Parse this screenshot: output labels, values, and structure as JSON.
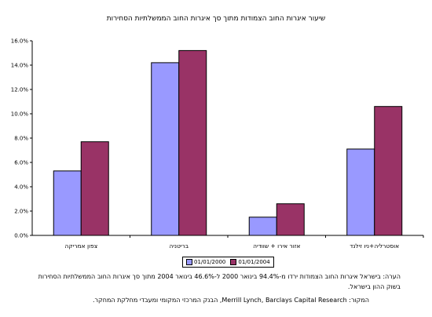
{
  "chart_data": {
    "type": "bar",
    "title": "שיעור איגרות החוב הצמודות מתוך סך איגרות החוב הממשלתיות הסחירות",
    "categories": [
      "צפון אמריקה",
      "בריטניה",
      "אזור אירו + שוודיה",
      "אוסטרליה+ניו זילנד"
    ],
    "series": [
      {
        "name": "01/01/2000",
        "color": "#9999ff",
        "values": [
          5.3,
          14.2,
          1.5,
          7.1
        ]
      },
      {
        "name": "01/01/2004",
        "color": "#993366",
        "values": [
          7.7,
          15.2,
          2.6,
          10.6
        ]
      }
    ],
    "ylim": [
      0,
      16
    ],
    "yticks": [
      "0.0%",
      "2.0%",
      "4.0%",
      "6.0%",
      "8.0%",
      "10.0%",
      "12.0%",
      "14.0%",
      "16.0%"
    ],
    "grid": false,
    "legend_position": "bottom"
  },
  "note": "הערה: בישראל איגרות החוב הצמודות ירדו מ-94.4% בינואר 2000 ל-46.6% בינואר 2004 מתוך סך איגרות החוב הממשלתיות הסחירות בשוק ההון בישראל.",
  "source": "המקור: Merrill Lynch, Barclays Capital Research, הבנק המרכזי המקומי ומעבדי מחלקת המחקר."
}
